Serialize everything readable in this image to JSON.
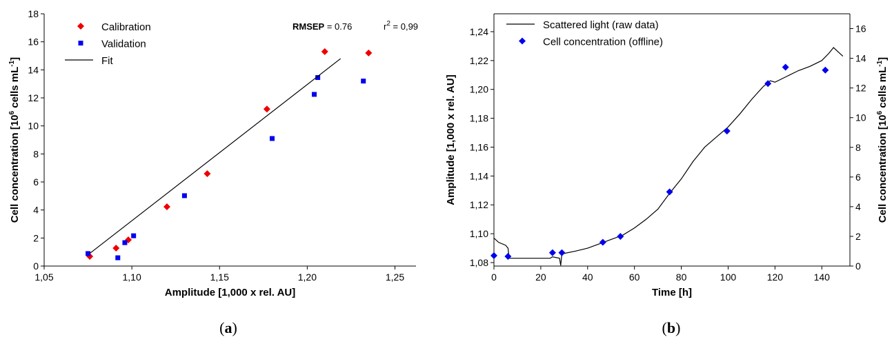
{
  "chart_data": [
    {
      "type": "scatter",
      "panel_label": [
        "(",
        "a",
        ")"
      ],
      "x_label": "Amplitude [1,000 x rel. AU]",
      "y_label": [
        "Cell concentration [10",
        "6",
        " cells mL",
        "-1",
        "]"
      ],
      "annotations": [
        [
          "RMSEP",
          " = 0.76"
        ],
        [
          "r",
          "2",
          " = 0,99"
        ]
      ],
      "frame": "axes",
      "xlim": [
        1.05,
        1.262
      ],
      "xticks": [
        {
          "value": 1.05,
          "label": "1,05"
        },
        {
          "value": 1.1,
          "label": "1,10"
        },
        {
          "value": 1.15,
          "label": "1,15"
        },
        {
          "value": 1.2,
          "label": "1,20"
        },
        {
          "value": 1.25,
          "label": "1,25"
        }
      ],
      "ylim": [
        0,
        18
      ],
      "yticks": [
        0,
        2,
        4,
        6,
        8,
        10,
        12,
        14,
        16,
        18
      ],
      "series": [
        {
          "name": "Calibration",
          "color": "#ee0000",
          "marker": "diamond",
          "x": [
            1.076,
            1.091,
            1.098,
            1.12,
            1.143,
            1.177,
            1.21,
            1.235
          ],
          "values": [
            0.69,
            1.28,
            1.87,
            4.23,
            6.59,
            11.2,
            15.3,
            15.2
          ]
        },
        {
          "name": "Validation",
          "color": "#0000ee",
          "marker": "square",
          "x": [
            1.075,
            1.092,
            1.096,
            1.101,
            1.13,
            1.18,
            1.204,
            1.206,
            1.232
          ],
          "values": [
            0.89,
            0.59,
            1.67,
            2.16,
            5.02,
            9.1,
            12.25,
            13.45,
            13.2
          ]
        },
        {
          "name": "Fit",
          "color": "#000000",
          "x": [
            1.076,
            1.219
          ],
          "values": [
            0.9,
            14.8
          ]
        }
      ]
    },
    {
      "type": "line",
      "panel_label": [
        "(",
        "b",
        ")"
      ],
      "x_label": "Time [h]",
      "y_label": "Amplitude [1,000 x rel. AU]",
      "y2_label": [
        "Cell concentration [10",
        "6",
        " cells mL",
        "-1",
        "]"
      ],
      "frame": "box",
      "xlim": [
        0,
        152
      ],
      "xticks": [
        0,
        20,
        40,
        60,
        80,
        100,
        120,
        140
      ],
      "ylim": [
        1.0776,
        1.2524
      ],
      "yticks": [
        {
          "value": 1.08,
          "label": "1,08"
        },
        {
          "value": 1.1,
          "label": "1,10"
        },
        {
          "value": 1.12,
          "label": "1,12"
        },
        {
          "value": 1.14,
          "label": "1,14"
        },
        {
          "value": 1.16,
          "label": "1,16"
        },
        {
          "value": 1.18,
          "label": "1,18"
        },
        {
          "value": 1.2,
          "label": "1,20"
        },
        {
          "value": 1.22,
          "label": "1,22"
        },
        {
          "value": 1.24,
          "label": "1,24"
        }
      ],
      "y2lim": [
        0,
        17
      ],
      "y2ticks": [
        0,
        2,
        4,
        6,
        8,
        10,
        12,
        14,
        16
      ],
      "series": [
        {
          "name": "Scattered light (raw data)",
          "color": "#000000",
          "x": [
            0,
            2,
            5,
            6,
            6.5,
            10,
            20,
            24,
            25,
            28,
            28.5,
            29,
            35,
            40,
            45,
            50,
            55,
            60,
            65,
            70,
            75,
            80,
            85,
            90,
            95,
            100,
            105,
            110,
            115,
            118,
            120,
            125,
            130,
            135,
            140,
            143,
            145,
            147,
            149
          ],
          "values": [
            1.097,
            1.094,
            1.092,
            1.09,
            1.083,
            1.083,
            1.083,
            1.083,
            1.084,
            1.083,
            1.078,
            1.086,
            1.088,
            1.09,
            1.093,
            1.096,
            1.099,
            1.104,
            1.11,
            1.117,
            1.128,
            1.138,
            1.15,
            1.16,
            1.167,
            1.174,
            1.183,
            1.193,
            1.202,
            1.206,
            1.205,
            1.209,
            1.213,
            1.216,
            1.22,
            1.225,
            1.229,
            1.226,
            1.223
          ]
        },
        {
          "name": "Cell concentration (offline)",
          "color": "#0000ee",
          "marker": "diamond",
          "axis": "y2",
          "x": [
            0,
            6,
            25,
            29,
            46.5,
            54,
            75,
            99.5,
            117,
            124.5,
            141.5
          ],
          "values": [
            0.7,
            0.65,
            0.9,
            0.9,
            1.6,
            2.0,
            5.0,
            9.1,
            12.3,
            13.4,
            13.2
          ]
        }
      ]
    }
  ]
}
